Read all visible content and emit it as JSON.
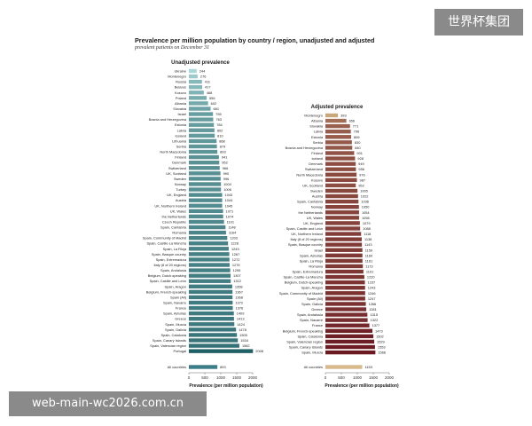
{
  "header": {
    "title": "Prevalence per million population by country / region, unadjusted and adjusted",
    "subtitle": "prevalent patients on December 31"
  },
  "watermarks": {
    "top": "世界杯集团",
    "bottom": "web-main-wc2026.com.cn"
  },
  "colors": {
    "unadjusted_dark": "#1f5f66",
    "unadjusted_light": "#a9d6d6",
    "adjusted_dark": "#6b1a22",
    "adjusted_light": "#c9a77a",
    "all_countries_unadjusted": "#3d7d88",
    "all_countries_adjusted": "#d7b98d"
  },
  "chart_data": [
    {
      "type": "bar",
      "orientation": "horizontal",
      "title": "Unadjusted prevalence",
      "xlabel": "Prevalence (per million population)",
      "xlim": [
        0,
        2000
      ],
      "xticks": [
        0,
        500,
        1000,
        1500,
        2000
      ],
      "grid": false,
      "categories": [
        "Ukraine",
        "Montenegro",
        "Russia",
        "Belarus",
        "Kosovo",
        "Poland",
        "Albania",
        "Slovakia",
        "Israel",
        "Bosnia and Herzegovina",
        "Estonia",
        "Latvia",
        "Iceland",
        "Lithuania",
        "Serbia",
        "North Macedonia",
        "Finland",
        "Denmark",
        "Switzerland",
        "UK, Scotland",
        "Sweden",
        "Norway",
        "Turkey",
        "UK, England",
        "Austria",
        "UK, Northern Ireland",
        "UK, Wales",
        "the Netherlands",
        "Czech Republic",
        "Spain, Cantabria",
        "Romania",
        "Spain, Community of Madrid",
        "Spain, Castile-La Mancha",
        "Spain, La Rioja",
        "Spain, Basque country",
        "Spain, Extremadura",
        "Italy (8 of 20 regions)",
        "Spain, Andalusia",
        "Belgium, Dutch-speaking",
        "Spain, Castile and León",
        "Spain, Aragon",
        "Belgium, French-speaking",
        "Spain (All)",
        "Spain, Navarre",
        "France",
        "Spain, Asturias",
        "Greece",
        "Spain, Murcia",
        "Spain, Galicia",
        "Spain, Catalonia",
        "Spain, Canary Islands",
        "Spain, Valencian region",
        "Portugal",
        "All countries"
      ],
      "values": [
        244,
        276,
        411,
        417,
        468,
        556,
        602,
        681,
        755,
        763,
        784,
        802,
        810,
        868,
        879,
        893,
        941,
        952,
        966,
        990,
        996,
        1004,
        1006,
        1043,
        1044,
        1045,
        1071,
        1074,
        1101,
        1148,
        1164,
        1203,
        1228,
        1249,
        1267,
        1272,
        1276,
        1295,
        1307,
        1312,
        1358,
        1367,
        1368,
        1372,
        1376,
        1409,
        1413,
        1424,
        1478,
        1505,
        1534,
        1582,
        2008,
        893
      ]
    },
    {
      "type": "bar",
      "orientation": "horizontal",
      "title": "Adjusted prevalence",
      "xlabel": "Prevalence (per million population)",
      "xlim": [
        0,
        2000
      ],
      "xticks": [
        0,
        500,
        1000,
        1500,
        2000
      ],
      "grid": false,
      "categories": [
        "Montenegro",
        "Albania",
        "Slovakia",
        "Latvia",
        "Estonia",
        "Serbia",
        "Bosnia and Herzegovina",
        "Finland",
        "Iceland",
        "Denmark",
        "Switzerland",
        "North Macedonia",
        "Kosovo",
        "UK, Scotland",
        "Sweden",
        "Austria",
        "Spain, Cantabria",
        "Norway",
        "the Netherlands",
        "UK, Wales",
        "UK, England",
        "Spain, Castile and León",
        "UK, Northern Ireland",
        "Italy (8 of 20 regions)",
        "Spain, Basque country",
        "Israel",
        "Spain, Asturias",
        "Spain, La Rioja",
        "Romania",
        "Spain, Extremadura",
        "Spain, Castile-La Mancha",
        "Belgium, Dutch-speaking",
        "Spain, Aragon",
        "Spain, Community of Madrid",
        "Spain (All)",
        "Spain, Galicia",
        "Greece",
        "Spain, Andalusia",
        "Spain, Navarre",
        "France",
        "Belgium, French-speaking",
        "Spain, Catalonia",
        "Spain, Valencian region",
        "Spain, Canary Islands",
        "Spain, Murcia",
        "All countries"
      ],
      "values": [
        393,
        656,
        771,
        796,
        806,
        830,
        840,
        901,
        928,
        949,
        956,
        976,
        987,
        952,
        1005,
        1022,
        1036,
        1050,
        1054,
        1056,
        1079,
        1088,
        1118,
        1138,
        1143,
        1159,
        1160,
        1161,
        1173,
        1191,
        1220,
        1237,
        1243,
        1246,
        1247,
        1266,
        1281,
        1315,
        1322,
        1377,
        1473,
        1502,
        1529,
        1553,
        1566,
        1153
      ]
    }
  ]
}
